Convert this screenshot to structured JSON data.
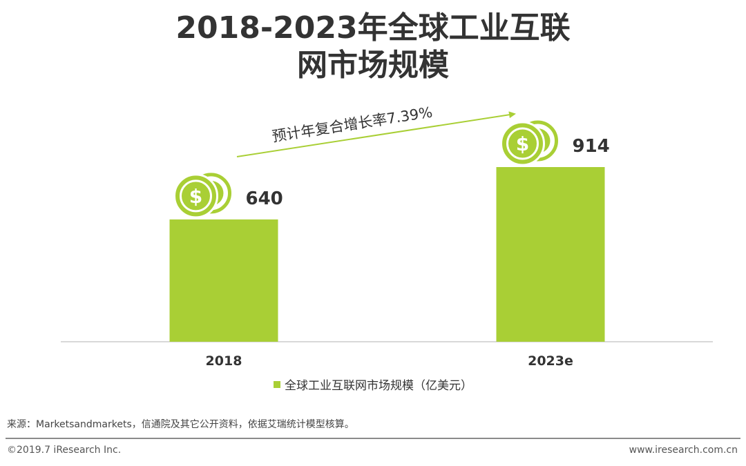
{
  "title_line1": "2018-2023年全球工业互联",
  "title_line2": "网市场规模",
  "chart_data": {
    "type": "bar",
    "title": "2018-2023年全球工业互联网市场规模",
    "categories": [
      "2018",
      "2023e"
    ],
    "series": [
      {
        "name": "全球工业互联网市场规模（亿美元）",
        "values": [
          640,
          914
        ]
      }
    ],
    "data_labels": [
      "640",
      "914"
    ],
    "ylim": [
      0,
      1000
    ],
    "grid": false,
    "legend": "bottom",
    "annotation": "预计年复合增长率7.39%"
  },
  "colors": {
    "bar": "#a9cf35",
    "coin": "#a9cf35",
    "arrow": "#a9cf35",
    "axis": "#cccccc"
  },
  "icons": [
    "dollar-coins-icon"
  ],
  "source_text": "来源：Marketsandmarkets，信通院及其它公开资料，依据艾瑞统计模型核算。",
  "copyright": "©2019.7 iResearch Inc.",
  "website": "www.iresearch.com.cn"
}
